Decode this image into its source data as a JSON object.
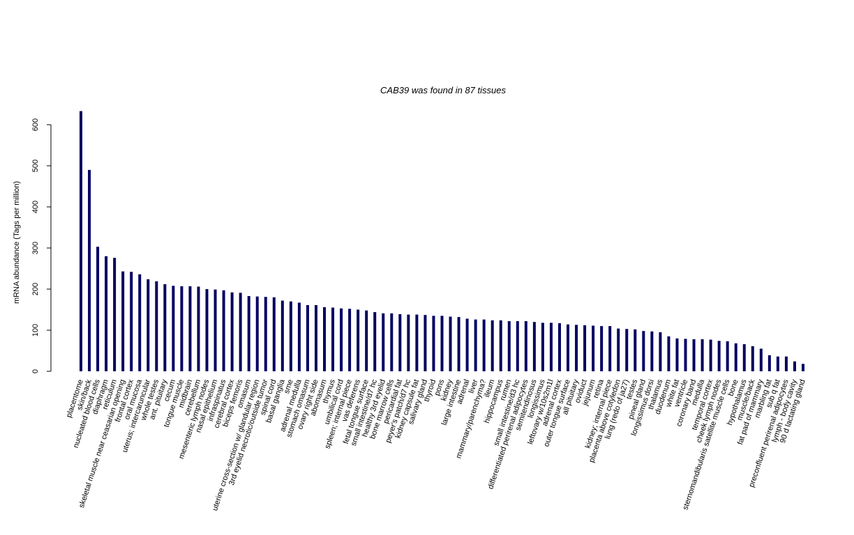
{
  "chart_data": {
    "type": "bar",
    "title": "CAB39  was found in  87  tissues",
    "y_label": "mRNA abundance (Tags per million)",
    "color": "#000060",
    "ylim": [
      0,
      600
    ],
    "yticks": [
      0,
      100,
      200,
      300,
      400,
      500,
      600
    ],
    "categories": [
      "placentome",
      "skin/back",
      "nucleated blood cells",
      "diaphragm",
      "reticulum",
      "skeletal muscle near ceasarian opening",
      "frontal cortex",
      "oral mucosa",
      "uterus; intercaruncular",
      "whole testes",
      "ant. pituitary",
      "cecum",
      "tongue muscle",
      "midbrain",
      "cerebellum",
      "mesenteric lymph nodes",
      "nasal epithelium",
      "infraspinatus",
      "cerebral cortex",
      "biceps femoris",
      "omasum",
      "uterine cross-section w/ glandular region",
      "3rd eyelid necrotic/outside tumor",
      "spinal cord",
      "basal ganglia",
      "sme",
      "adrenal medulla",
      "stomach omasum",
      "ovary right side",
      "abomasum",
      "thymus",
      "umbilical cord",
      "spleen; internal piece",
      "vas deferens",
      "fetal tongue surface",
      "small intestine/d7 hc",
      "healthy 3rd eyelid",
      "bone marrow cells",
      "pericardial fat",
      "peyer's patch/d7 hc",
      "kidney capsule fat",
      "salivary gland",
      "thyroid",
      "pons",
      "kidney",
      "large intestine",
      "adrenal",
      "liver",
      "mammary/parenchyma?",
      "ileum",
      "hippocampus",
      "rumen",
      "small intestine/d3 hc",
      "differentiated perirenal adipocytes",
      "semitendinosus",
      "longissimus",
      "leftovary w/10s2m1l",
      "adrenal cortex",
      "outer tongue surface",
      "all pituitary",
      "oviduct",
      "jejunum",
      "retina",
      "kidney; internal piece",
      "placenta above cotyledon",
      "lung (redo of ja27)",
      "testes",
      "pineal gland",
      "longissimus dorsi",
      "thalamus",
      "duodenum",
      "white fat",
      "ventricle",
      "coronary band",
      "medulla",
      "temporal cortex",
      "cheek lymph nodes",
      "sternomandibularis satellite muscle cells",
      "bone",
      "hypothalamus",
      "muscle/back",
      "fat pad of mammary",
      "marbling fat",
      "sub q fat",
      "preconfluent perirenal adipocytes",
      "lymph - body cavity",
      "90 d lactating gland"
    ],
    "values": [
      633,
      490,
      303,
      280,
      276,
      243,
      242,
      236,
      224,
      219,
      212,
      208,
      207,
      207,
      206,
      200,
      199,
      197,
      192,
      191,
      183,
      182,
      181,
      180,
      172,
      170,
      167,
      161,
      161,
      156,
      155,
      153,
      152,
      150,
      148,
      144,
      141,
      141,
      139,
      138,
      138,
      137,
      135,
      135,
      133,
      132,
      128,
      126,
      126,
      124,
      124,
      122,
      122,
      122,
      120,
      118,
      118,
      117,
      114,
      113,
      112,
      111,
      110,
      110,
      104,
      103,
      102,
      98,
      97,
      95,
      85,
      80,
      79,
      78,
      78,
      77,
      74,
      73,
      68,
      66,
      61,
      55,
      39,
      36,
      36,
      24,
      18
    ]
  }
}
